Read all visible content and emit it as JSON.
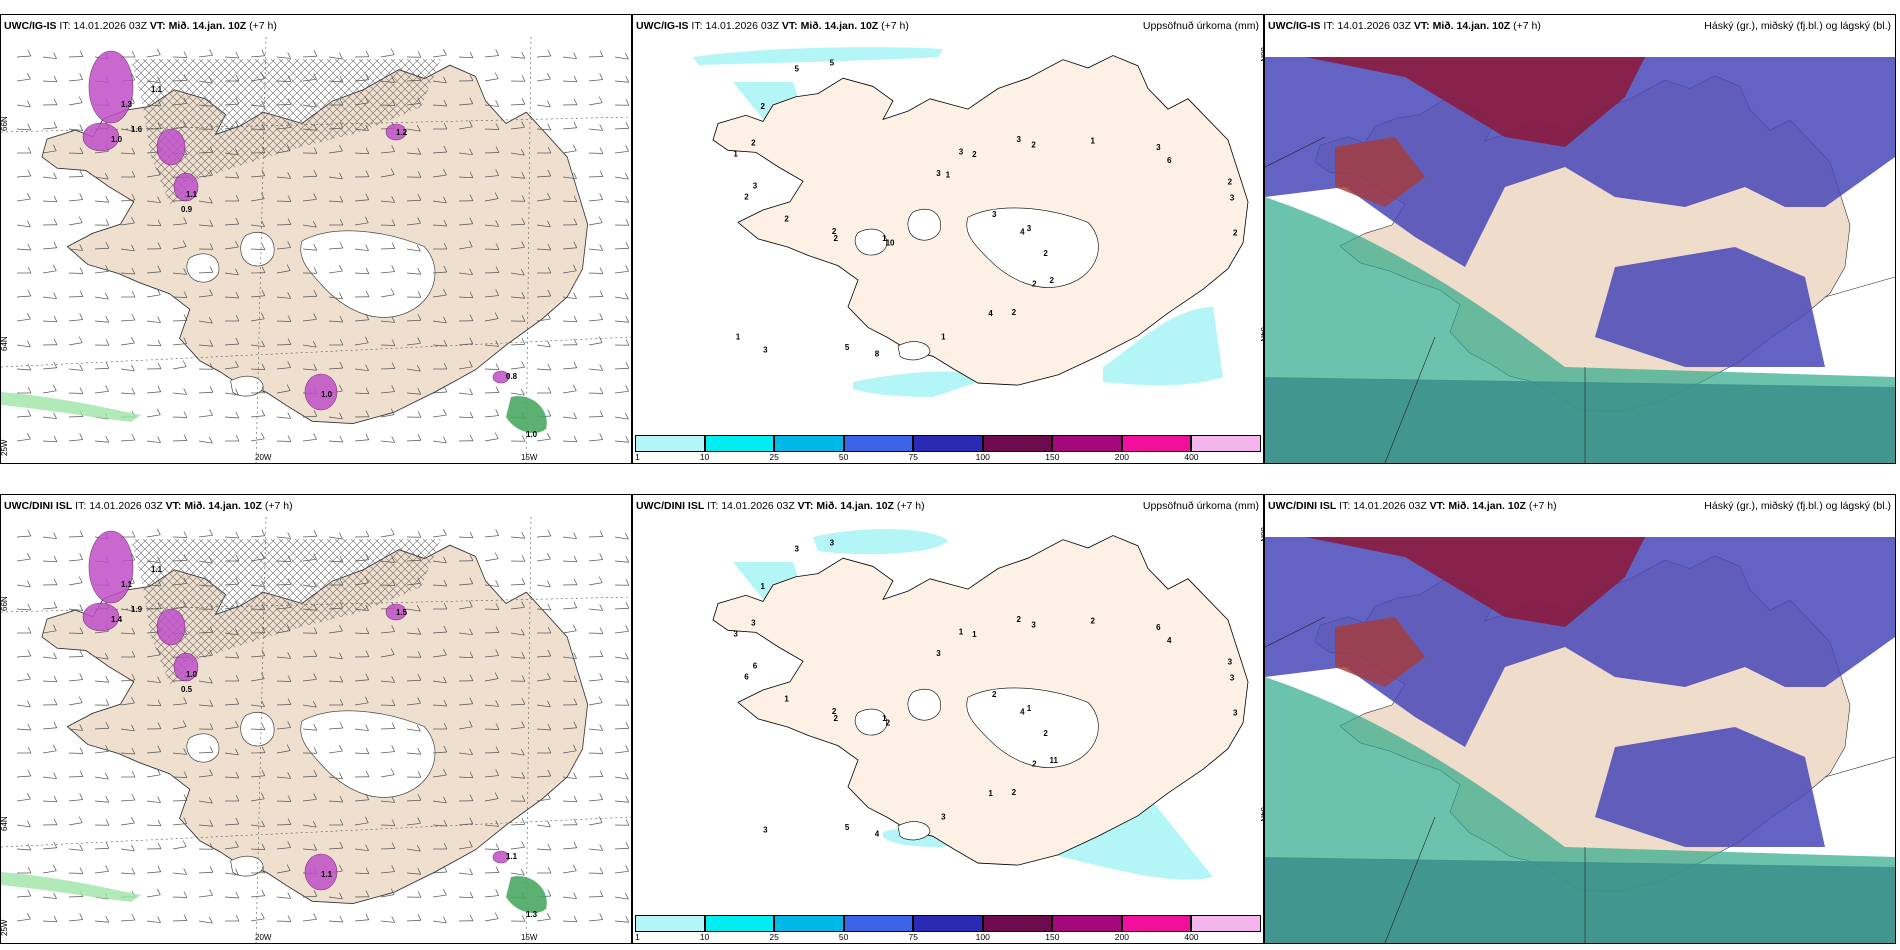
{
  "panels": [
    {
      "model": "UWC/IG-IS",
      "it_label": "IT:",
      "it": "14.01.2026 03Z",
      "vt_label": "VT:",
      "vt": "Mið. 14.jan. 10Z",
      "lead": "(+7 h)",
      "right": ""
    },
    {
      "model": "UWC/IG-IS",
      "it_label": "IT:",
      "it": "14.01.2026 03Z",
      "vt_label": "VT:",
      "vt": "Mið. 14.jan. 10Z",
      "lead": "(+7 h)",
      "right": "Uppsöfnuð úrkoma (mm)"
    },
    {
      "model": "UWC/IG-IS",
      "it_label": "IT:",
      "it": "14.01.2026 03Z",
      "vt_label": "VT:",
      "vt": "Mið. 14.jan. 10Z",
      "lead": "(+7 h)",
      "right": "Háský (gr.), miðský (fj.bl.) og lágský (bl.)"
    },
    {
      "model": "UWC/DINI ISL",
      "it_label": "IT:",
      "it": "14.01.2026 03Z",
      "vt_label": "VT:",
      "vt": "Mið. 14.jan. 10Z",
      "lead": "(+7 h)",
      "right": ""
    },
    {
      "model": "UWC/DINI ISL",
      "it_label": "IT:",
      "it": "14.01.2026 03Z",
      "vt_label": "VT:",
      "vt": "Mið. 14.jan. 10Z",
      "lead": "(+7 h)",
      "right": "Uppsöfnuð úrkoma (mm)"
    },
    {
      "model": "UWC/DINI ISL",
      "it_label": "IT:",
      "it": "14.01.2026 03Z",
      "vt_label": "VT:",
      "vt": "Mið. 14.jan. 10Z",
      "lead": "(+7 h)",
      "right": "Háský (gr.), miðský (fj.bl.) og lágský (bl.)"
    }
  ],
  "axis_labels": {
    "lat66": "66N",
    "lat64": "64N",
    "lon25": "25W",
    "lon20": "20W",
    "lon15": "15W"
  },
  "colorbar": {
    "ticks": [
      "1",
      "10",
      "25",
      "50",
      "75",
      "100",
      "150",
      "200",
      "400"
    ],
    "colors": [
      "#b4f5f8",
      "#00eef2",
      "#00b8e8",
      "#3a64e8",
      "#2a2ab4",
      "#6e0a4e",
      "#a4087a",
      "#f0109c",
      "#f4b4ec"
    ]
  },
  "precip_labels_ig": [
    "3",
    "10",
    "3",
    "2",
    "2",
    "3",
    "8",
    "5",
    "3",
    "2",
    "3",
    "2",
    "1",
    "2",
    "3",
    "3",
    "2",
    "2",
    "1",
    "1",
    "2",
    "2",
    "1",
    "2",
    "2",
    "3",
    "6",
    "5",
    "5",
    "4",
    "2",
    "2",
    "4",
    "2",
    "3",
    "1",
    "1"
  ],
  "precip_labels_dini": [
    "2",
    "2",
    "1",
    "11",
    "6",
    "6",
    "4",
    "3",
    "1",
    "2",
    "2",
    "2",
    "3",
    "3",
    "3",
    "3",
    "2",
    "1",
    "2",
    "3",
    "1",
    "3",
    "1",
    "1",
    "2",
    "6",
    "4",
    "5",
    "3",
    "4",
    "2",
    "3",
    "1",
    "3",
    "3"
  ],
  "wind_labels_ig": [
    "1.3",
    "1.6",
    "1.0",
    "1.1",
    "1.0",
    "0.9",
    "1.2",
    "0.8",
    "1.0",
    "1.1"
  ],
  "wind_labels_dini": [
    "1.1",
    "1.9",
    "1.4",
    "1.0",
    "1.1",
    "0.5",
    "1.5",
    "1.1",
    "1.3",
    "1.1"
  ],
  "colors": {
    "land": "#eedfcf",
    "sea": "#ffffff",
    "glacier": "#ffffff",
    "ocean_cloud": "#3a8f8a",
    "high_cloud": "#8a1b3e",
    "mid_cloud": "#4848b8",
    "low_cloud": "#2ea98a",
    "precip_light": "#b4f5f8",
    "snow_mark": "#c050c8"
  }
}
